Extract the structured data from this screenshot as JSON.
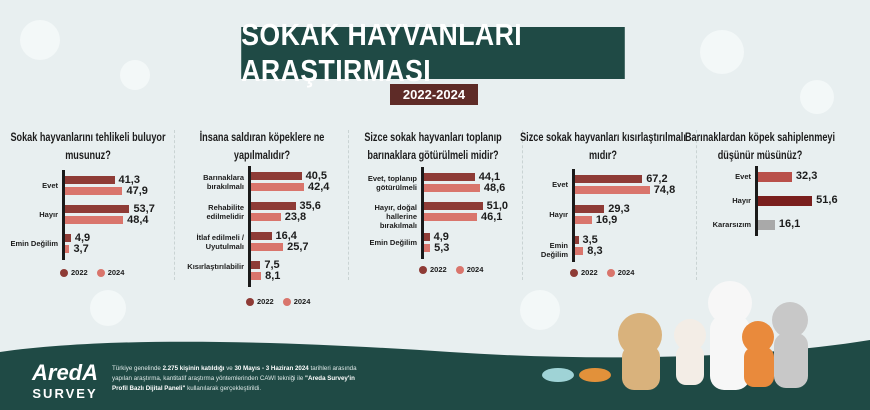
{
  "header": {
    "title": "SOKAK HAYVANLARI ARAŞTIRMASI",
    "years": "2022-2024"
  },
  "colors": {
    "y2022": "#8e3b36",
    "y2024": "#d9756c",
    "header_bg": "#1f4a45",
    "single_evet": "#b9504a",
    "single_hayir": "#7a1f1d",
    "single_kararsiz": "#a9a9a9"
  },
  "legend": {
    "a": "2022",
    "b": "2024"
  },
  "chart_data": [
    {
      "type": "bar",
      "orientation": "horizontal",
      "title": "Sokak hayvanlarını tehlikeli buluyor musunuz?",
      "categories": [
        "Evet",
        "Hayır",
        "Emin Değilim"
      ],
      "series": [
        {
          "name": "2022",
          "values": [
            41.3,
            53.7,
            4.9
          ]
        },
        {
          "name": "2024",
          "values": [
            47.9,
            48.4,
            3.7
          ]
        }
      ],
      "labels": {
        "2022": [
          "41,3",
          "53,7",
          "4,9"
        ],
        "2024": [
          "47,9",
          "48,4",
          "3,7"
        ]
      },
      "legend": "bottom"
    },
    {
      "type": "bar",
      "orientation": "horizontal",
      "title": "İnsana saldıran köpeklere ne yapılmalıdır?",
      "categories": [
        "Barınaklara bırakılmalı",
        "Rehabilite edilmelidir",
        "İtlaf edilmeli / Uyutulmalı",
        "Kısırlaştırılabilir"
      ],
      "series": [
        {
          "name": "2022",
          "values": [
            40.5,
            35.6,
            16.4,
            7.5
          ]
        },
        {
          "name": "2024",
          "values": [
            42.4,
            23.8,
            25.7,
            8.1
          ]
        }
      ],
      "labels": {
        "2022": [
          "40,5",
          "35,6",
          "16,4",
          "7,5"
        ],
        "2024": [
          "42,4",
          "23,8",
          "25,7",
          "8,1"
        ]
      },
      "legend": "bottom"
    },
    {
      "type": "bar",
      "orientation": "horizontal",
      "title": "Sizce sokak hayvanları toplanıp barınaklara götürülmeli midir?",
      "categories": [
        "Evet, toplanıp götürülmeli",
        "Hayır, doğal hallerine bırakılmalı",
        "Emin Değilim"
      ],
      "series": [
        {
          "name": "2022",
          "values": [
            44.1,
            51.0,
            4.9
          ]
        },
        {
          "name": "2024",
          "values": [
            48.6,
            46.1,
            5.3
          ]
        }
      ],
      "labels": {
        "2022": [
          "44,1",
          "51,0",
          "4,9"
        ],
        "2024": [
          "48,6",
          "46,1",
          "5,3"
        ]
      },
      "legend": "bottom"
    },
    {
      "type": "bar",
      "orientation": "horizontal",
      "title": "Sizce sokak hayvanları kısırlaştırılmalı mıdır?",
      "categories": [
        "Evet",
        "Hayır",
        "Emin Değilim"
      ],
      "series": [
        {
          "name": "2022",
          "values": [
            67.2,
            29.3,
            3.5
          ]
        },
        {
          "name": "2024",
          "values": [
            74.8,
            16.9,
            8.3
          ]
        }
      ],
      "labels": {
        "2022": [
          "67,2",
          "29,3",
          "3,5"
        ],
        "2024": [
          "74,8",
          "16,9",
          "8,3"
        ]
      },
      "legend": "bottom"
    },
    {
      "type": "bar",
      "orientation": "horizontal",
      "title": "Barınaklardan köpek sahiplenmeyi düşünür müsünüz?",
      "categories": [
        "Evet",
        "Hayır",
        "Kararsızım"
      ],
      "series": [
        {
          "values": [
            32.3,
            51.6,
            16.1
          ]
        }
      ],
      "labels": {
        "single": [
          "32,3",
          "51,6",
          "16,1"
        ]
      }
    }
  ],
  "footer": {
    "logo": "AredA",
    "logo_sub": "SURVEY",
    "note_1": "Türkiye genelinde ",
    "note_b1": "2.275 kişinin katıldığı",
    "note_2": " ve ",
    "note_b2": "30 Mayıs - 3 Haziran 2024",
    "note_3": " tarihleri arasında yapılan araştırma, kantitatif araştırma yöntemlerinden CAWI tekniği ile ",
    "note_b3": "\"Areda Survey'in Profil Bazlı Dijital Paneli\"",
    "note_4": " kullanılarak gerçekleştirildi."
  }
}
